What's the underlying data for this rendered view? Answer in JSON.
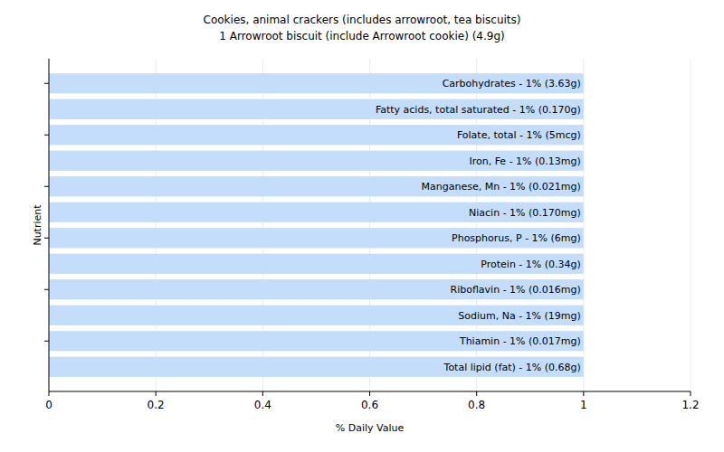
{
  "chart_data": {
    "type": "bar",
    "orientation": "horizontal",
    "title": "Cookies, animal crackers (includes arrowroot, tea biscuits)",
    "subtitle": "1 Arrowroot biscuit (include Arrowroot cookie) (4.9g)",
    "x_label": "% Daily Value",
    "y_label": "Nutrient",
    "categories": [
      "Carbohydrates - 1% (3.63g)",
      "Fatty acids, total saturated - 1% (0.170g)",
      "Folate, total - 1% (5mcg)",
      "Iron, Fe - 1% (0.13mg)",
      "Manganese, Mn - 1% (0.021mg)",
      "Niacin - 1% (0.170mg)",
      "Phosphorus, P - 1% (6mg)",
      "Protein - 1% (0.34g)",
      "Riboflavin - 1% (0.016mg)",
      "Sodium, Na - 1% (19mg)",
      "Thiamin - 1% (0.017mg)",
      "Total lipid (fat) - 1% (0.68g)"
    ],
    "values": [
      1,
      1,
      1,
      1,
      1,
      1,
      1,
      1,
      1,
      1,
      1,
      1
    ],
    "color": "#c4ddfb",
    "xlim": [
      0,
      1.2
    ],
    "xticks": [
      0,
      0.2,
      0.4,
      0.6,
      0.8,
      1,
      1.2
    ],
    "grid": true,
    "tick_labels": "x"
  }
}
